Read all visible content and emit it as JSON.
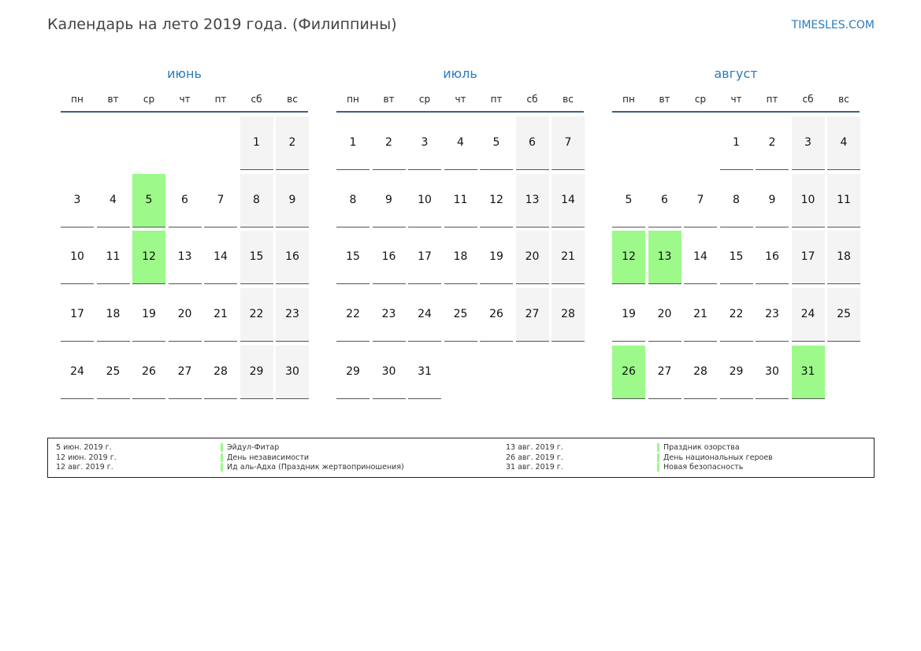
{
  "header": {
    "title": "Календарь на лето 2019 года. (Филиппины)",
    "site": "TIMESLES.COM"
  },
  "weekdays": [
    "пн",
    "вт",
    "ср",
    "чт",
    "пт",
    "сб",
    "вс"
  ],
  "colors": {
    "accent": "#2a7bc0",
    "holiday": "#9cf98a",
    "weekend": "#f4f4f4"
  },
  "months": [
    {
      "name": "июнь",
      "first_weekday": 6,
      "days": 30,
      "holidays": [
        5,
        12
      ]
    },
    {
      "name": "июль",
      "first_weekday": 1,
      "days": 31,
      "holidays": []
    },
    {
      "name": "август",
      "first_weekday": 4,
      "days": 31,
      "holidays": [
        12,
        13,
        26,
        31
      ]
    }
  ],
  "legend": [
    {
      "date": "5 июн. 2019 г.",
      "name": "Эйдул-Фитар"
    },
    {
      "date": "12 июн. 2019 г.",
      "name": "День независимости"
    },
    {
      "date": "12 авг. 2019 г.",
      "name": "Ид аль-Адха (Праздник жертвоприношения)"
    },
    {
      "date": "13 авг. 2019 г.",
      "name": "Праздник озорства"
    },
    {
      "date": "26 авг. 2019 г.",
      "name": "День национальных героев"
    },
    {
      "date": "31 авг. 2019 г.",
      "name": "Новая безопасность"
    }
  ]
}
